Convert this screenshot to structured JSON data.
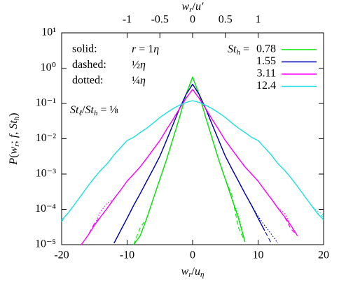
{
  "chart_data": {
    "type": "line",
    "xlabel": [
      [
        "w",
        "i"
      ],
      [
        "r",
        "s"
      ],
      [
        "/",
        "n"
      ],
      [
        "u",
        "i"
      ],
      [
        "η",
        "s"
      ]
    ],
    "x2label": [
      [
        "w",
        "i"
      ],
      [
        "r",
        "s"
      ],
      [
        "/",
        "n"
      ],
      [
        "u′",
        "i"
      ]
    ],
    "ylabel": [
      [
        "P",
        "i"
      ],
      [
        "(",
        "n"
      ],
      [
        "w",
        "i"
      ],
      [
        "r",
        "s"
      ],
      [
        "; ",
        "n"
      ],
      [
        "f",
        "i"
      ],
      [
        ", ",
        "n"
      ],
      [
        "St",
        "i"
      ],
      [
        "h",
        "s"
      ],
      [
        ")",
        "n"
      ]
    ],
    "legend_prefix": [
      [
        "St",
        "i"
      ],
      [
        "h",
        "s"
      ],
      [
        " = ",
        "n"
      ]
    ],
    "annotations": [
      {
        "label": "solid:",
        "value": [
          [
            "r",
            "i"
          ],
          [
            " = 1",
            "n"
          ],
          [
            "η",
            "i"
          ]
        ]
      },
      {
        "label": "dashed:",
        "value": [
          [
            "½",
            "n"
          ],
          [
            "η",
            "i"
          ]
        ]
      },
      {
        "label": "dotted:",
        "value": [
          [
            "¼",
            "n"
          ],
          [
            "η",
            "i"
          ]
        ]
      }
    ],
    "ratio_note": [
      [
        "St",
        "i"
      ],
      [
        "ℓ",
        "s"
      ],
      [
        "/",
        "n"
      ],
      [
        "St",
        "i"
      ],
      [
        "h",
        "s"
      ],
      [
        " = ⅛",
        "n"
      ]
    ],
    "log_y": true,
    "xlim": [
      -20,
      20
    ],
    "xticks": [
      -20,
      -10,
      0,
      10,
      20
    ],
    "x2lim": [
      -2,
      2
    ],
    "x2ticks": [
      -1,
      -0.5,
      0,
      0.5,
      1
    ],
    "ylim": [
      1e-05,
      10
    ],
    "yticks": [
      {
        "value": 10,
        "label": "10¹"
      },
      {
        "value": 1,
        "label": "10⁰"
      },
      {
        "value": 0.1,
        "label": "10⁻¹"
      },
      {
        "value": 0.01,
        "label": "10⁻²"
      },
      {
        "value": 0.001,
        "label": "10⁻³"
      },
      {
        "value": 0.0001,
        "label": "10⁻⁴"
      },
      {
        "value": 1e-05,
        "label": "10⁻⁵"
      }
    ],
    "legend": "upper right",
    "x": [
      -20,
      -19,
      -18,
      -17,
      -16,
      -15,
      -14,
      -13,
      -12,
      -11,
      -10,
      -9,
      -8,
      -7,
      -6,
      -5,
      -4,
      -3,
      -2,
      -1,
      0,
      1,
      2,
      3,
      4,
      5,
      6,
      7,
      8,
      9,
      10,
      11,
      12,
      13,
      14,
      15,
      16,
      17,
      18,
      19,
      20
    ],
    "series": [
      {
        "name": "0.78",
        "color": "#00e600",
        "values": [
          null,
          null,
          null,
          null,
          null,
          null,
          null,
          null,
          null,
          null,
          null,
          1e-05,
          1.8e-05,
          5.6e-05,
          0.0002,
          0.00071,
          0.0025,
          0.01,
          0.04,
          0.18,
          0.56,
          0.18,
          0.04,
          0.01,
          0.0025,
          0.00071,
          0.0002,
          5.6e-05,
          1.2e-05,
          null,
          null,
          null,
          null,
          null,
          null,
          null,
          null,
          null,
          null,
          null,
          null
        ],
        "dashed": [
          null,
          null,
          null,
          null,
          null,
          null,
          null,
          null,
          null,
          null,
          null,
          1e-05,
          3e-05,
          5.6e-05,
          0.0002,
          0.00071,
          0.0025,
          0.01,
          0.04,
          0.18,
          0.56,
          0.18,
          0.04,
          0.01,
          0.0025,
          0.00071,
          0.00025,
          3e-05,
          1.2e-05,
          null,
          null,
          null,
          null,
          null,
          null,
          null,
          null,
          null,
          null,
          null,
          null
        ],
        "dotted": [
          null,
          null,
          null,
          null,
          null,
          null,
          null,
          null,
          null,
          null,
          null,
          1e-05,
          1.8e-05,
          5.6e-05,
          0.0002,
          0.00071,
          0.0025,
          0.01,
          0.04,
          0.18,
          0.56,
          0.18,
          0.04,
          0.01,
          0.0025,
          0.00071,
          0.0002,
          7e-05,
          1.2e-05,
          null,
          null,
          null,
          null,
          null,
          null,
          null,
          null,
          null,
          null,
          null,
          null
        ]
      },
      {
        "name": "1.55",
        "color": "#0000b4",
        "values": [
          null,
          null,
          null,
          null,
          null,
          null,
          null,
          null,
          1.1e-05,
          2.5e-05,
          5.6e-05,
          0.00013,
          0.00028,
          0.00063,
          0.0014,
          0.0032,
          0.0089,
          0.025,
          0.071,
          0.18,
          0.35,
          0.18,
          0.071,
          0.025,
          0.0089,
          0.0032,
          0.0014,
          0.00063,
          0.00028,
          0.00013,
          5.6e-05,
          2.5e-05,
          null,
          null,
          null,
          null,
          null,
          null,
          null,
          null,
          null
        ],
        "dashed": [
          null,
          null,
          null,
          null,
          null,
          null,
          null,
          null,
          1.1e-05,
          2.5e-05,
          5.6e-05,
          0.00013,
          0.00028,
          0.00063,
          0.0014,
          0.0032,
          0.0089,
          0.025,
          0.071,
          0.18,
          0.35,
          0.18,
          0.071,
          0.025,
          0.0089,
          0.0032,
          0.0014,
          0.00063,
          0.00028,
          0.00013,
          5.6e-05,
          2.5e-05,
          1.1e-05,
          null,
          null,
          null,
          null,
          null,
          null,
          null,
          null
        ],
        "dotted": [
          null,
          null,
          null,
          null,
          null,
          null,
          null,
          null,
          1.1e-05,
          2.5e-05,
          5.6e-05,
          0.00013,
          0.00028,
          0.00063,
          0.0014,
          0.0032,
          0.0089,
          0.025,
          0.071,
          0.18,
          0.35,
          0.18,
          0.071,
          0.025,
          0.0089,
          0.0032,
          0.0014,
          0.00063,
          0.00028,
          0.00013,
          6.3e-05,
          3.5e-05,
          2e-05,
          1.1e-05,
          null,
          null,
          null,
          null,
          null,
          null,
          null
        ]
      },
      {
        "name": "3.11",
        "color": "#ff00ff",
        "values": [
          null,
          null,
          null,
          1e-05,
          1.8e-05,
          3.5e-05,
          6.3e-05,
          0.00011,
          0.0002,
          0.00035,
          0.00063,
          0.001,
          0.0016,
          0.0028,
          0.005,
          0.0089,
          0.018,
          0.035,
          0.071,
          0.14,
          0.25,
          0.14,
          0.071,
          0.035,
          0.018,
          0.0089,
          0.005,
          0.0028,
          0.0016,
          0.001,
          0.00063,
          0.00035,
          0.0002,
          0.00011,
          6.3e-05,
          3.5e-05,
          1.8e-05,
          null,
          null,
          null,
          null
        ],
        "dashed": [
          null,
          null,
          null,
          1e-05,
          1.8e-05,
          4e-05,
          6.3e-05,
          0.00011,
          0.0002,
          0.00035,
          0.00063,
          0.001,
          0.0016,
          0.0028,
          0.005,
          0.0089,
          0.018,
          0.035,
          0.071,
          0.14,
          0.25,
          0.14,
          0.071,
          0.035,
          0.018,
          0.0089,
          0.005,
          0.0028,
          0.0016,
          0.001,
          0.00063,
          0.00035,
          0.0002,
          0.00011,
          6.3e-05,
          2.8e-05,
          1.8e-05,
          null,
          null,
          null,
          null
        ],
        "dotted": [
          null,
          null,
          null,
          1e-05,
          1.8e-05,
          3.5e-05,
          9e-05,
          0.00015,
          0.0002,
          0.00035,
          0.00063,
          0.001,
          0.0016,
          0.0028,
          0.005,
          0.0089,
          0.018,
          0.035,
          0.071,
          0.14,
          0.25,
          0.14,
          0.071,
          0.035,
          0.018,
          0.0089,
          0.005,
          0.0028,
          0.0016,
          0.001,
          0.00063,
          0.00035,
          0.0002,
          0.00011,
          8e-05,
          3.5e-05,
          1.8e-05,
          null,
          null,
          null,
          null
        ]
      },
      {
        "name": "12.4",
        "color": "#22e0e0",
        "values": [
          5e-05,
          7.9e-05,
          0.00014,
          0.00025,
          0.00045,
          0.00079,
          0.0013,
          0.002,
          0.0035,
          0.0056,
          0.0089,
          0.011,
          0.015,
          0.02,
          0.028,
          0.04,
          0.054,
          0.071,
          0.089,
          0.107,
          0.12,
          0.107,
          0.089,
          0.071,
          0.054,
          0.04,
          0.028,
          0.02,
          0.015,
          0.011,
          0.0089,
          0.0056,
          0.0035,
          0.002,
          0.0013,
          0.00079,
          0.00045,
          0.00025,
          0.00014,
          7.9e-05,
          5e-05
        ],
        "dashed": [
          4.5e-05,
          7.9e-05,
          0.00014,
          0.00025,
          0.00045,
          0.00079,
          0.0013,
          0.002,
          0.0035,
          0.0056,
          0.0089,
          0.011,
          0.015,
          0.02,
          0.028,
          0.04,
          0.054,
          0.071,
          0.089,
          0.107,
          0.12,
          0.107,
          0.089,
          0.071,
          0.054,
          0.04,
          0.028,
          0.02,
          0.015,
          0.011,
          0.0089,
          0.0056,
          0.0035,
          0.002,
          0.0013,
          0.00079,
          0.00045,
          0.00025,
          0.00014,
          7.9e-05,
          6e-05
        ],
        "dotted": [
          5e-05,
          7.9e-05,
          0.00014,
          0.00025,
          0.00045,
          0.00079,
          0.0013,
          0.002,
          0.0035,
          0.0056,
          0.0089,
          0.011,
          0.015,
          0.02,
          0.028,
          0.04,
          0.054,
          0.071,
          0.089,
          0.107,
          0.12,
          0.107,
          0.089,
          0.071,
          0.054,
          0.04,
          0.028,
          0.02,
          0.015,
          0.011,
          0.0089,
          0.0056,
          0.0035,
          0.002,
          0.0013,
          0.00079,
          0.00045,
          0.00025,
          0.00014,
          9e-05,
          7e-05
        ]
      }
    ]
  }
}
